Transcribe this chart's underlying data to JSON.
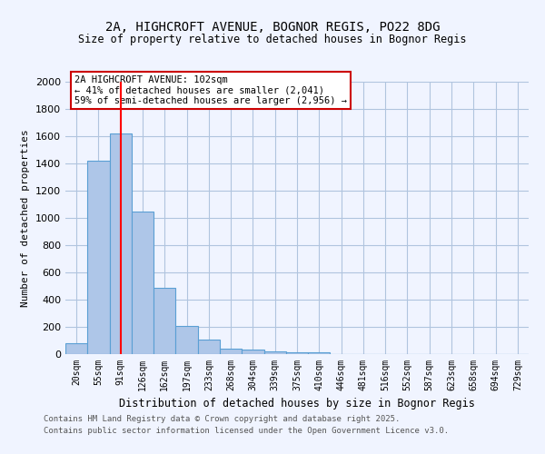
{
  "title1": "2A, HIGHCROFT AVENUE, BOGNOR REGIS, PO22 8DG",
  "title2": "Size of property relative to detached houses in Bognor Regis",
  "xlabel": "Distribution of detached houses by size in Bognor Regis",
  "ylabel": "Number of detached properties",
  "categories": [
    "20sqm",
    "55sqm",
    "91sqm",
    "126sqm",
    "162sqm",
    "197sqm",
    "233sqm",
    "268sqm",
    "304sqm",
    "339sqm",
    "375sqm",
    "410sqm",
    "446sqm",
    "481sqm",
    "516sqm",
    "552sqm",
    "587sqm",
    "623sqm",
    "658sqm",
    "694sqm",
    "729sqm"
  ],
  "values": [
    80,
    1420,
    1620,
    1050,
    490,
    205,
    105,
    40,
    35,
    20,
    15,
    15,
    0,
    0,
    0,
    0,
    0,
    0,
    0,
    0,
    0
  ],
  "bar_color": "#aec6e8",
  "bar_edge_color": "#5a9fd4",
  "red_line_x": 2.0,
  "annotation_text": "2A HIGHCROFT AVENUE: 102sqm\n← 41% of detached houses are smaller (2,041)\n59% of semi-detached houses are larger (2,956) →",
  "annotation_box_color": "#ffffff",
  "annotation_box_edge": "#cc0000",
  "ylim": [
    0,
    2000
  ],
  "yticks": [
    0,
    200,
    400,
    600,
    800,
    1000,
    1200,
    1400,
    1600,
    1800,
    2000
  ],
  "footer1": "Contains HM Land Registry data © Crown copyright and database right 2025.",
  "footer2": "Contains public sector information licensed under the Open Government Licence v3.0.",
  "bg_color": "#f0f4ff",
  "grid_color": "#b0c4de"
}
